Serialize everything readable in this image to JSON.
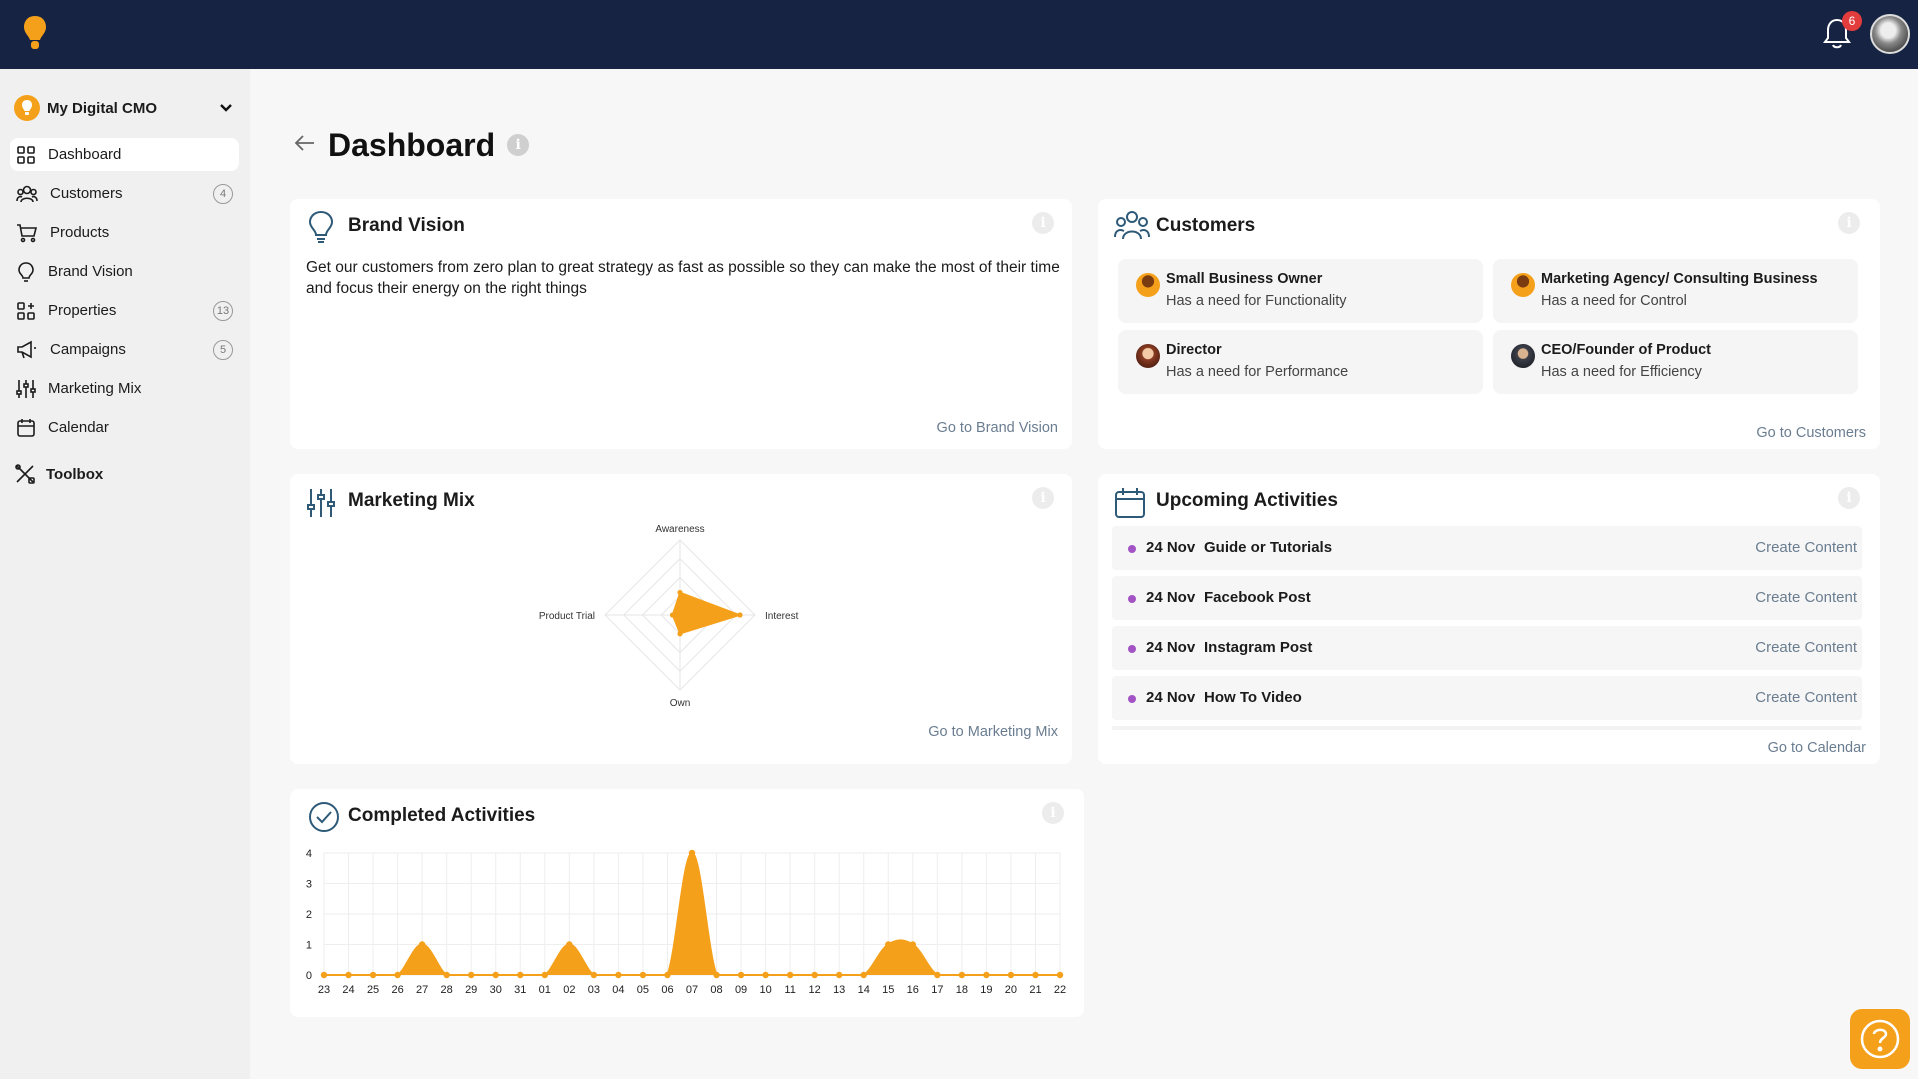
{
  "app": {
    "notifications_count": "6",
    "brand_color": "#f5a01a",
    "topbar_color": "#162342"
  },
  "sidebar": {
    "workspace": "My Digital CMO",
    "items": [
      {
        "label": "Dashboard",
        "icon": "grid-icon",
        "count": ""
      },
      {
        "label": "Customers",
        "icon": "users-icon",
        "count": "4"
      },
      {
        "label": "Products",
        "icon": "cart-icon",
        "count": ""
      },
      {
        "label": "Brand Vision",
        "icon": "lightbulb-icon",
        "count": ""
      },
      {
        "label": "Properties",
        "icon": "apps-icon",
        "count": "13"
      },
      {
        "label": "Campaigns",
        "icon": "megaphone-icon",
        "count": "5"
      },
      {
        "label": "Marketing Mix",
        "icon": "sliders-icon",
        "count": ""
      },
      {
        "label": "Calendar",
        "icon": "calendar-icon",
        "count": ""
      }
    ],
    "toolbox": "Toolbox"
  },
  "header": {
    "title": "Dashboard"
  },
  "brand_vision": {
    "title": "Brand Vision",
    "text": "Get our customers from zero plan to great strategy as fast as possible so they can make the most of their time and focus their energy on the right things",
    "link": "Go to Brand Vision"
  },
  "customers": {
    "title": "Customers",
    "link": "Go to Customers",
    "personas": [
      {
        "name": "Small Business Owner",
        "need": "Has a need for Functionality"
      },
      {
        "name": "Marketing Agency/ Consulting Business",
        "need": "Has a need for Control"
      },
      {
        "name": "Director",
        "need": "Has a need for Performance"
      },
      {
        "name": "CEO/Founder of Product",
        "need": "Has a need for Efficiency"
      }
    ]
  },
  "marketing_mix": {
    "title": "Marketing Mix",
    "link": "Go to Marketing Mix"
  },
  "upcoming": {
    "title": "Upcoming Activities",
    "link": "Go to Calendar",
    "items": [
      {
        "date": "24 Nov",
        "title": "Guide or Tutorials",
        "action": "Create Content"
      },
      {
        "date": "24 Nov",
        "title": "Facebook Post",
        "action": "Create Content"
      },
      {
        "date": "24 Nov",
        "title": "Instagram Post",
        "action": "Create Content"
      },
      {
        "date": "24 Nov",
        "title": "How To Video",
        "action": "Create Content"
      }
    ]
  },
  "completed": {
    "title": "Completed Activities"
  },
  "chart_data": [
    {
      "type": "radar",
      "axes": [
        "Awareness",
        "Interest",
        "Own",
        "Product Trial"
      ],
      "values": [
        0.3,
        0.8,
        0.25,
        0.1
      ],
      "range": [
        0,
        1
      ],
      "color": "#f5a01a"
    },
    {
      "type": "area",
      "categories": [
        "23",
        "24",
        "25",
        "26",
        "27",
        "28",
        "29",
        "30",
        "31",
        "01",
        "02",
        "03",
        "04",
        "05",
        "06",
        "07",
        "08",
        "09",
        "10",
        "11",
        "12",
        "13",
        "14",
        "15",
        "16",
        "17",
        "18",
        "19",
        "20",
        "21",
        "22"
      ],
      "values": [
        0,
        0,
        0,
        0,
        1,
        0,
        0,
        0,
        0,
        0,
        1,
        0,
        0,
        0,
        0,
        4,
        0,
        0,
        0,
        0,
        0,
        0,
        0,
        1,
        1,
        0,
        0,
        0,
        0,
        0,
        0
      ],
      "y_ticks": [
        "0",
        "1",
        "2",
        "3",
        "4"
      ],
      "ylim": [
        0,
        4
      ],
      "grid": true,
      "color": "#f5a01a"
    }
  ]
}
